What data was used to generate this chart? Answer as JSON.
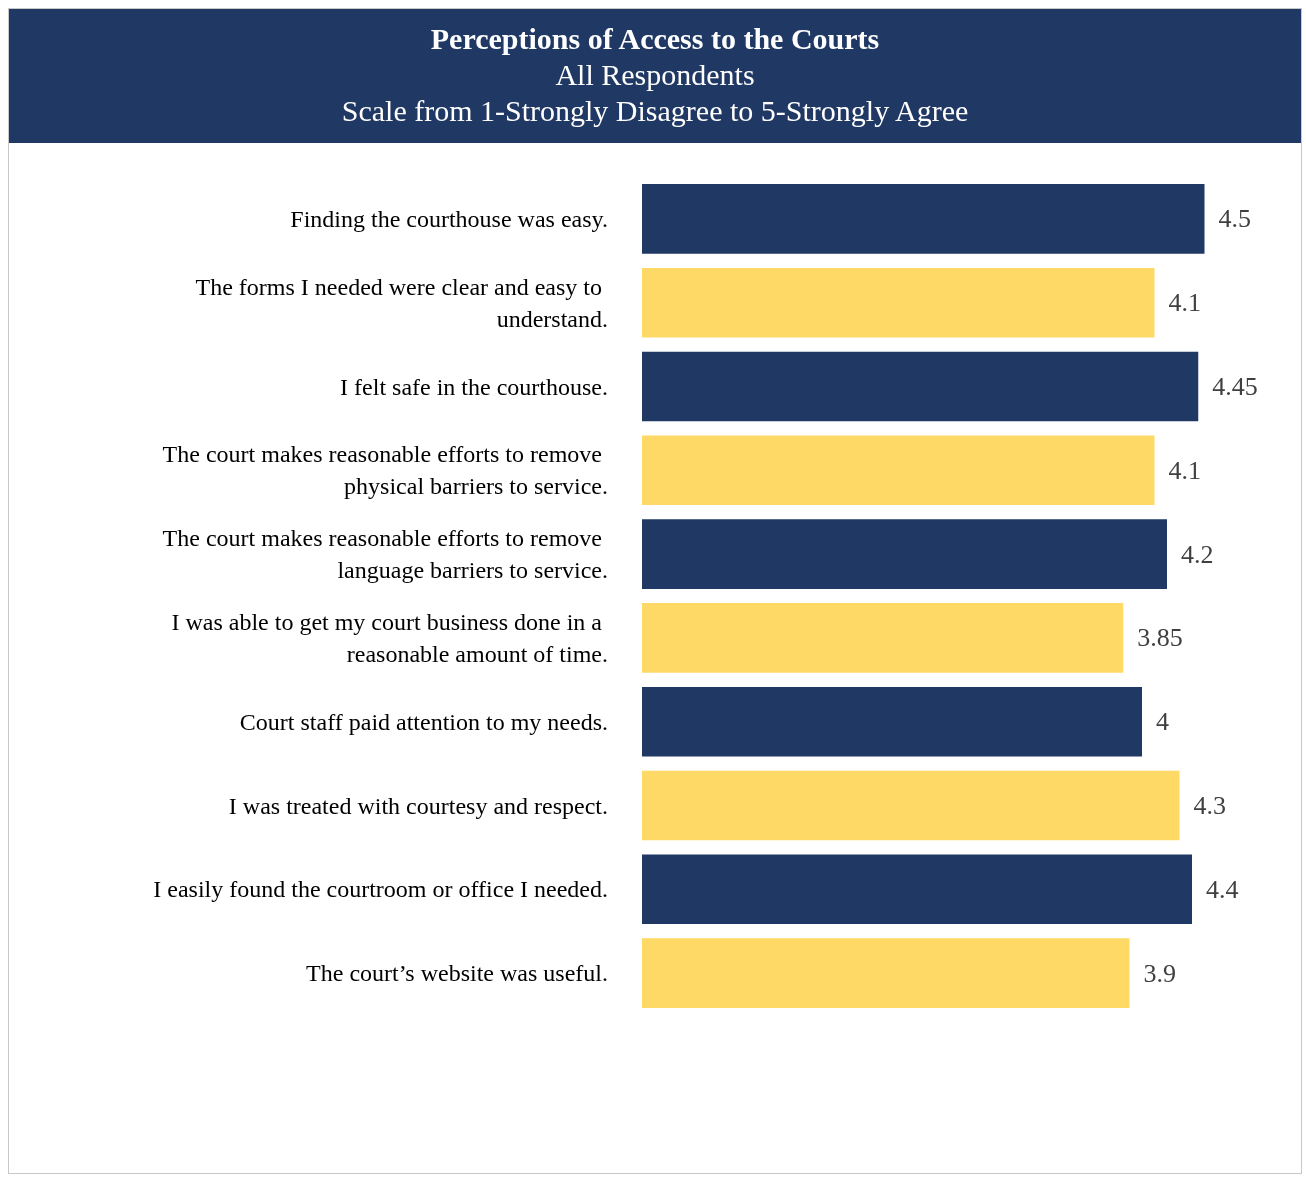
{
  "chart_data": {
    "type": "bar",
    "orientation": "horizontal",
    "title": "Perceptions of Access to the Courts",
    "subtitle": "All Respondents",
    "annotations": [
      "Scale from 1-Strongly Disagree to 5-Strongly Agree"
    ],
    "categories": [
      "Finding the courthouse was easy.",
      "The forms I needed were clear and easy to understand.",
      "I felt safe in the courthouse.",
      "The court makes reasonable efforts to remove physical barriers to service.",
      "The court makes reasonable efforts to remove language barriers to service.",
      "I was able to get my court business done in a reasonable amount of time.",
      "Court staff paid attention to my needs.",
      "I was treated with courtesy and respect.",
      "I easily found the courtroom or office I needed.",
      "The court’s website was useful."
    ],
    "values": [
      4.5,
      4.1,
      4.45,
      4.1,
      4.2,
      3.85,
      4,
      4.3,
      4.4,
      3.9
    ],
    "colors": [
      "#203864",
      "#ffd966",
      "#203864",
      "#ffd966",
      "#203864",
      "#ffd966",
      "#203864",
      "#ffd966",
      "#203864",
      "#ffd966"
    ],
    "tick_labels": "y",
    "data_labels": true
  }
}
